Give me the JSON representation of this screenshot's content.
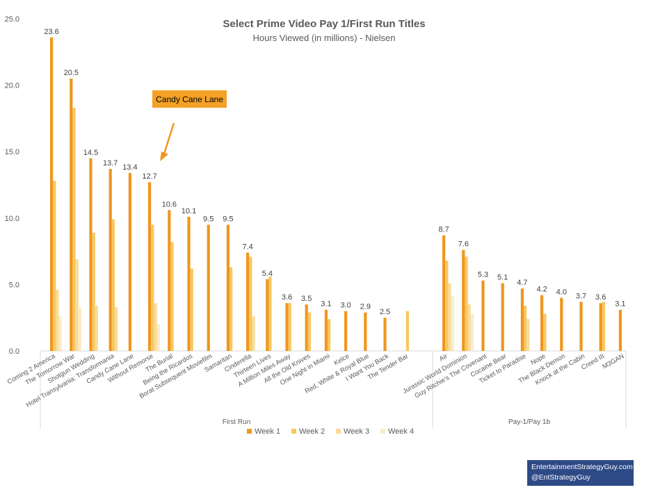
{
  "chart_data": {
    "type": "bar",
    "title": "Select Prime Video Pay 1/First Run Titles",
    "subtitle": "Hours Viewed (in millions) - Nielsen",
    "ylim": [
      0,
      25
    ],
    "yticks": [
      "0.0",
      "5.0",
      "10.0",
      "15.0",
      "20.0",
      "25.0"
    ],
    "grid": false,
    "legend_position": "bottom",
    "groups": [
      {
        "name": "First Run",
        "categories": [
          "Coming 2 America",
          "The Tomorrow War",
          "Shotgun Wedding",
          "Hotel Transylvania: Transformania",
          "Candy Cane Lane",
          "Without Remorse",
          "The Burial",
          "Being the Ricardos",
          "Borat Subsequent Moviefilm",
          "Samaritan",
          "Cinderella",
          "Thirteen Lives",
          "A Million Miles Away",
          "All the Old Knives",
          "One Night in Miami",
          "Kelce",
          "Red, White & Royal Blue",
          "I Want You Back",
          "The Tender Bar"
        ]
      },
      {
        "name": "Pay-1/Pay 1b",
        "categories": [
          "Air",
          "Jurassic World Dominion",
          "Guy Ritchie's The Covenant",
          "Cocaine Bear",
          "Ticket to Paradise",
          "Nope",
          "The Black Demon",
          "Knock at the Cabin",
          "Creed III",
          "M3GAN"
        ]
      }
    ],
    "series": [
      {
        "name": "Week 1",
        "color": "#f0961e",
        "values": [
          23.6,
          20.5,
          14.5,
          13.7,
          13.4,
          12.7,
          10.6,
          10.1,
          9.5,
          9.5,
          7.4,
          5.4,
          3.6,
          3.5,
          3.1,
          3.0,
          2.9,
          2.5,
          null,
          8.7,
          7.6,
          5.3,
          5.1,
          4.7,
          4.2,
          4.0,
          3.7,
          3.6,
          3.1
        ]
      },
      {
        "name": "Week 2",
        "color": "#f7c85f",
        "values": [
          12.8,
          18.3,
          8.9,
          9.9,
          null,
          9.5,
          8.2,
          6.2,
          null,
          6.3,
          7.1,
          5.6,
          3.6,
          2.9,
          2.4,
          null,
          null,
          null,
          3.0,
          6.8,
          7.1,
          null,
          null,
          3.4,
          2.8,
          null,
          null,
          3.7,
          null
        ]
      },
      {
        "name": "Week 3",
        "color": "#f9dc9a",
        "values": [
          4.6,
          6.9,
          3.4,
          3.3,
          null,
          3.6,
          null,
          null,
          null,
          null,
          2.6,
          null,
          null,
          null,
          null,
          null,
          null,
          null,
          null,
          5.1,
          3.5,
          null,
          null,
          2.4,
          null,
          null,
          null,
          null,
          null
        ]
      },
      {
        "name": "Week 4",
        "color": "#fbebcb",
        "values": [
          2.6,
          3.3,
          null,
          null,
          null,
          2.0,
          null,
          null,
          null,
          null,
          null,
          null,
          null,
          null,
          null,
          null,
          null,
          null,
          null,
          4.1,
          2.8,
          null,
          null,
          null,
          null,
          null,
          null,
          null,
          null
        ]
      }
    ],
    "data_labels": [
      "23.6",
      "20.5",
      "14.5",
      "13.7",
      "13.4",
      "12.7",
      "10.6",
      "10.1",
      "9.5",
      "9.5",
      "7.4",
      "5.4",
      "3.6",
      "3.5",
      "3.1",
      "3.0",
      "2.9",
      "2.5",
      "",
      "8.7",
      "7.6",
      "5.3",
      "5.1",
      "4.7",
      "4.2",
      "4.0",
      "3.7",
      "3.6",
      "3.1"
    ],
    "annotation": "Candy Cane Lane"
  },
  "credit": {
    "line1": "EntertainmentStrategyGuy.com",
    "line2": "@EntStrategyGuy"
  }
}
